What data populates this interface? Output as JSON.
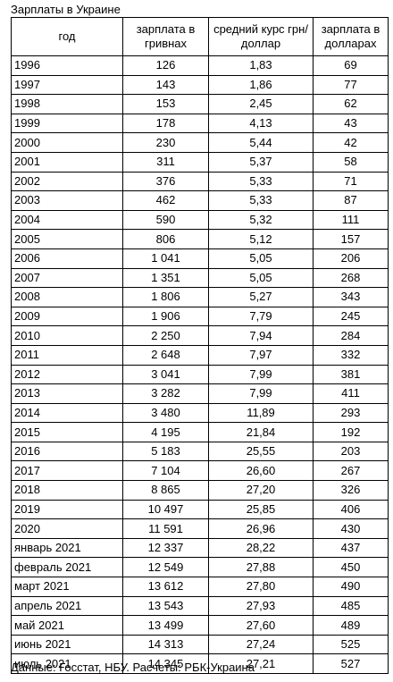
{
  "title": "Зарплаты в Украине",
  "columns": {
    "year": "год",
    "uah": "зарплата в гривнах",
    "rate": "средний курс грн/доллар",
    "usd": "зарплата в долларах"
  },
  "rows": [
    {
      "period": "1996",
      "uah": "126",
      "rate": "1,83",
      "usd": "69"
    },
    {
      "period": "1997",
      "uah": "143",
      "rate": "1,86",
      "usd": "77"
    },
    {
      "period": "1998",
      "uah": "153",
      "rate": "2,45",
      "usd": "62"
    },
    {
      "period": "1999",
      "uah": "178",
      "rate": "4,13",
      "usd": "43"
    },
    {
      "period": "2000",
      "uah": "230",
      "rate": "5,44",
      "usd": "42"
    },
    {
      "period": "2001",
      "uah": "311",
      "rate": "5,37",
      "usd": "58"
    },
    {
      "period": "2002",
      "uah": "376",
      "rate": "5,33",
      "usd": "71"
    },
    {
      "period": "2003",
      "uah": "462",
      "rate": "5,33",
      "usd": "87"
    },
    {
      "period": "2004",
      "uah": "590",
      "rate": "5,32",
      "usd": "111"
    },
    {
      "period": "2005",
      "uah": "806",
      "rate": "5,12",
      "usd": "157"
    },
    {
      "period": "2006",
      "uah": "1 041",
      "rate": "5,05",
      "usd": "206"
    },
    {
      "period": "2007",
      "uah": "1 351",
      "rate": "5,05",
      "usd": "268"
    },
    {
      "period": "2008",
      "uah": "1 806",
      "rate": "5,27",
      "usd": "343"
    },
    {
      "period": "2009",
      "uah": "1 906",
      "rate": "7,79",
      "usd": "245"
    },
    {
      "period": "2010",
      "uah": "2 250",
      "rate": "7,94",
      "usd": "284"
    },
    {
      "period": "2011",
      "uah": "2 648",
      "rate": "7,97",
      "usd": "332"
    },
    {
      "period": "2012",
      "uah": "3 041",
      "rate": "7,99",
      "usd": "381"
    },
    {
      "period": "2013",
      "uah": "3 282",
      "rate": "7,99",
      "usd": "411"
    },
    {
      "period": "2014",
      "uah": "3 480",
      "rate": "11,89",
      "usd": "293"
    },
    {
      "period": "2015",
      "uah": "4 195",
      "rate": "21,84",
      "usd": "192"
    },
    {
      "period": "2016",
      "uah": "5 183",
      "rate": "25,55",
      "usd": "203"
    },
    {
      "period": "2017",
      "uah": "7 104",
      "rate": "26,60",
      "usd": "267"
    },
    {
      "period": "2018",
      "uah": "8 865",
      "rate": "27,20",
      "usd": "326"
    },
    {
      "period": "2019",
      "uah": "10 497",
      "rate": "25,85",
      "usd": "406"
    },
    {
      "period": "2020",
      "uah": "11 591",
      "rate": "26,96",
      "usd": "430"
    },
    {
      "period": "январь 2021",
      "uah": "12 337",
      "rate": "28,22",
      "usd": "437"
    },
    {
      "period": "февраль 2021",
      "uah": "12 549",
      "rate": "27,88",
      "usd": "450"
    },
    {
      "period": "март 2021",
      "uah": "13 612",
      "rate": "27,80",
      "usd": "490"
    },
    {
      "period": "апрель 2021",
      "uah": "13 543",
      "rate": "27,93",
      "usd": "485"
    },
    {
      "period": "май 2021",
      "uah": "13 499",
      "rate": "27,60",
      "usd": "489"
    },
    {
      "period": "июнь 2021",
      "uah": "14 313",
      "rate": "27,24",
      "usd": "525"
    },
    {
      "period": "июль 2021",
      "uah": "14 345",
      "rate": "27,21",
      "usd": "527"
    }
  ],
  "source": "Данные: Госстат, НБУ. Расчеты: РБК-Украина"
}
